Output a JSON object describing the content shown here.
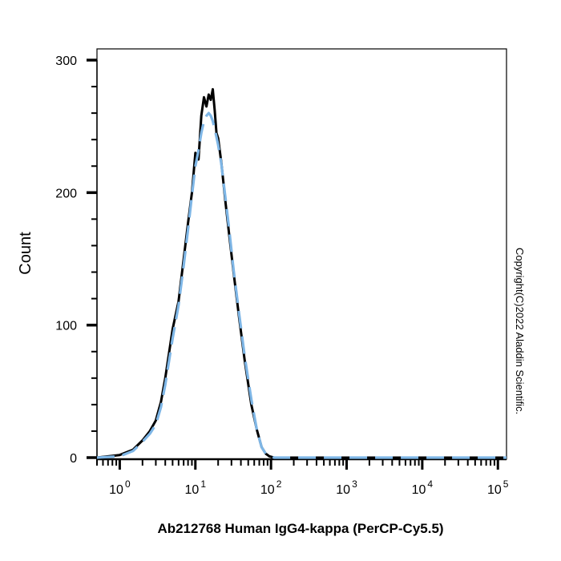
{
  "chart_data": {
    "type": "line",
    "title": "",
    "xlabel": "Ab212768 Human IgG4-kappa (PerCP-Cy5.5)",
    "ylabel": "Count",
    "xscale": "log",
    "xlim": [
      0.5,
      130000
    ],
    "ylim": [
      0,
      300
    ],
    "x_ticks": [
      {
        "base": "10",
        "exp": "0",
        "value": 1
      },
      {
        "base": "10",
        "exp": "1",
        "value": 10
      },
      {
        "base": "10",
        "exp": "2",
        "value": 100
      },
      {
        "base": "10",
        "exp": "3",
        "value": 1000
      },
      {
        "base": "10",
        "exp": "4",
        "value": 10000
      },
      {
        "base": "10",
        "exp": "5",
        "value": 100000
      }
    ],
    "y_ticks": [
      0,
      100,
      200,
      300
    ],
    "grid": false,
    "series": [
      {
        "style": "solid",
        "color": "#000000",
        "x": [
          0.5,
          1.0,
          1.5,
          2.0,
          2.5,
          3.0,
          3.5,
          4.0,
          5.0,
          6.0,
          7.0,
          8.0,
          9.0,
          10.0,
          11.0,
          12.0,
          13.0,
          14.0,
          15.0,
          16.0,
          17.0,
          18.0,
          19.0,
          20.0,
          22.0,
          25.0,
          28.0,
          32.0,
          38.0,
          45.0,
          55.0,
          65.0,
          75.0,
          85.0,
          95.0,
          110.0,
          130.0,
          1000.0,
          130000.0
        ],
        "y": [
          0,
          2,
          6,
          13,
          20,
          28,
          42,
          60,
          97,
          118,
          150,
          177,
          200,
          230,
          225,
          258,
          272,
          265,
          274,
          270,
          278,
          262,
          245,
          241,
          223,
          193,
          168,
          140,
          105,
          73,
          40,
          21,
          8,
          3,
          1,
          0,
          0,
          0,
          0
        ]
      },
      {
        "style": "dashed",
        "color": "#7eb6e6",
        "x": [
          0.5,
          1.0,
          1.5,
          2.0,
          2.5,
          3.0,
          3.5,
          4.0,
          5.0,
          6.0,
          7.0,
          8.0,
          9.0,
          10.0,
          11.0,
          12.0,
          13.0,
          14.0,
          15.0,
          16.0,
          17.0,
          18.0,
          19.0,
          20.0,
          22.0,
          25.0,
          28.0,
          32.0,
          38.0,
          45.0,
          55.0,
          65.0,
          75.0,
          85.0,
          95.0,
          110.0,
          130.0,
          1000.0,
          130000.0
        ],
        "y": [
          0,
          1,
          5,
          12,
          18,
          25,
          38,
          55,
          90,
          115,
          145,
          172,
          198,
          220,
          232,
          245,
          254,
          258,
          260,
          258,
          254,
          248,
          242,
          236,
          222,
          196,
          172,
          142,
          108,
          76,
          44,
          21,
          8,
          3,
          1,
          0,
          0,
          0,
          0
        ]
      }
    ]
  },
  "copyright": "Copyright(C)2022 Aladdin Scientific."
}
